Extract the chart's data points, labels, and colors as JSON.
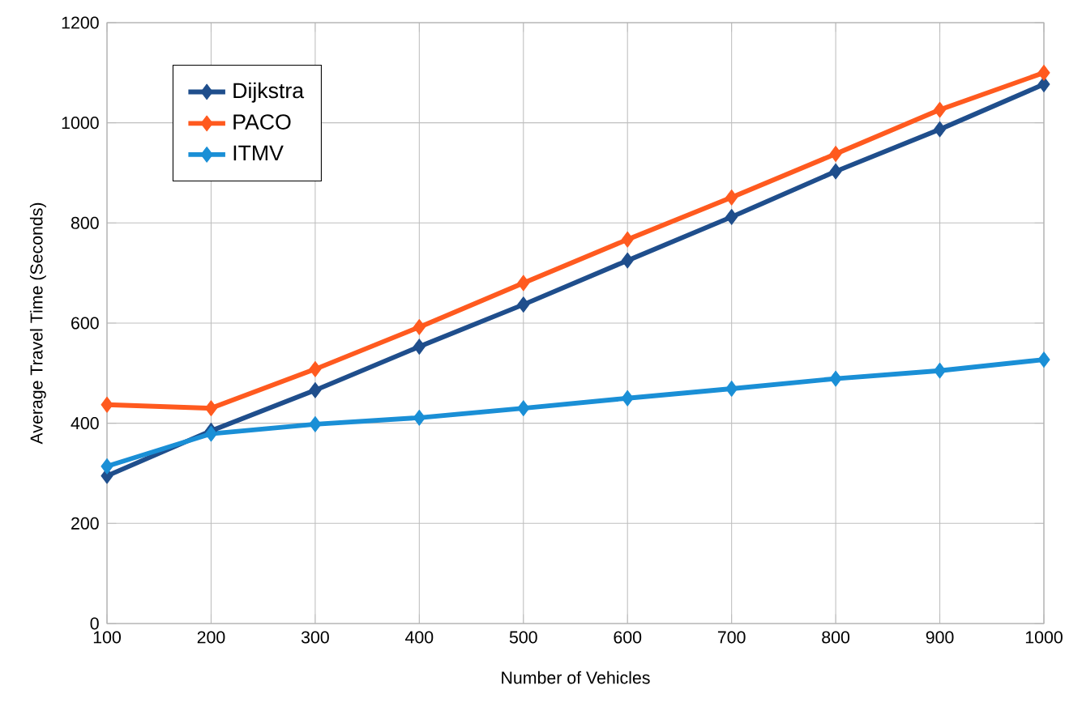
{
  "chart_data": {
    "type": "line",
    "xlabel": "Number of Vehicles",
    "ylabel": "Average Travel Time (Seconds)",
    "x": [
      100,
      200,
      300,
      400,
      500,
      600,
      700,
      800,
      900,
      1000
    ],
    "series": [
      {
        "name": "Dijkstra",
        "color": "#1f4e8c",
        "values": [
          295,
          385,
          466,
          553,
          637,
          725,
          812,
          903,
          987,
          1077
        ]
      },
      {
        "name": "PACO",
        "color": "#ff5a1f",
        "values": [
          437,
          430,
          508,
          592,
          680,
          767,
          851,
          938,
          1026,
          1100
        ]
      },
      {
        "name": "ITMV",
        "color": "#1a8fd6",
        "values": [
          314,
          379,
          398,
          411,
          430,
          450,
          469,
          489,
          505,
          527
        ]
      }
    ],
    "xlim": [
      100,
      1000
    ],
    "xticks": [
      100,
      200,
      300,
      400,
      500,
      600,
      700,
      800,
      900,
      1000
    ],
    "ylim": [
      0,
      1200
    ],
    "yticks": [
      0,
      200,
      400,
      600,
      800,
      1000,
      1200
    ],
    "grid": true,
    "legend": "top left",
    "marker": "diamond",
    "line_style": "solid"
  }
}
